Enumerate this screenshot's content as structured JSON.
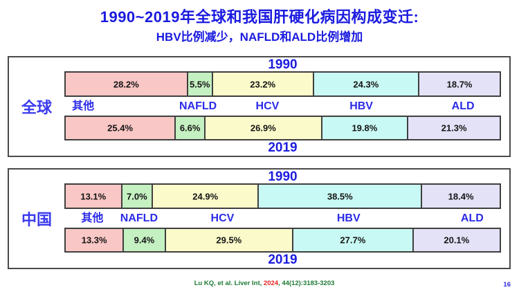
{
  "title": "1990~2019年全球和我国肝硬化病因构成变迁:",
  "subtitle": "HBV比例减少，NAFLD和ALD比例增加",
  "segment_colors": [
    "#f9c7c5",
    "#c5f0c1",
    "#fbfaca",
    "#c9f9f4",
    "#e3e2f7"
  ],
  "accent_colors": {
    "heading_blue": "#1a1ae0",
    "label_blue": "#2b2be8",
    "citation_green": "#1e7b34",
    "citation_red": "#e8221f"
  },
  "categories": [
    "其他",
    "NAFLD",
    "HCV",
    "HBV",
    "ALD"
  ],
  "chart_data": [
    {
      "type": "bar",
      "subtype": "horizontal-stacked",
      "region": "全球",
      "year_top": "1990",
      "year_bottom": "2019",
      "unit": "%",
      "series": [
        {
          "name": "其他",
          "values": [
            28.2,
            25.4
          ]
        },
        {
          "name": "NAFLD",
          "values": [
            5.5,
            6.6
          ]
        },
        {
          "name": "HCV",
          "values": [
            23.2,
            26.9
          ]
        },
        {
          "name": "HBV",
          "values": [
            24.3,
            19.8
          ]
        },
        {
          "name": "ALD",
          "values": [
            18.7,
            21.3
          ]
        }
      ]
    },
    {
      "type": "bar",
      "subtype": "horizontal-stacked",
      "region": "中国",
      "year_top": "1990",
      "year_bottom": "2019",
      "unit": "%",
      "series": [
        {
          "name": "其他",
          "values": [
            13.1,
            13.3
          ]
        },
        {
          "name": "NAFLD",
          "values": [
            7.0,
            9.4
          ]
        },
        {
          "name": "HCV",
          "values": [
            24.9,
            29.5
          ]
        },
        {
          "name": "HBV",
          "values": [
            38.5,
            27.7
          ]
        },
        {
          "name": "ALD",
          "values": [
            18.4,
            20.1
          ]
        }
      ]
    }
  ],
  "footer": {
    "citation_prefix": "Lu KQ, et al. Liver Int, ",
    "citation_year": "2024",
    "citation_suffix": ", 44(12):3183-3203"
  },
  "page_number": "16"
}
